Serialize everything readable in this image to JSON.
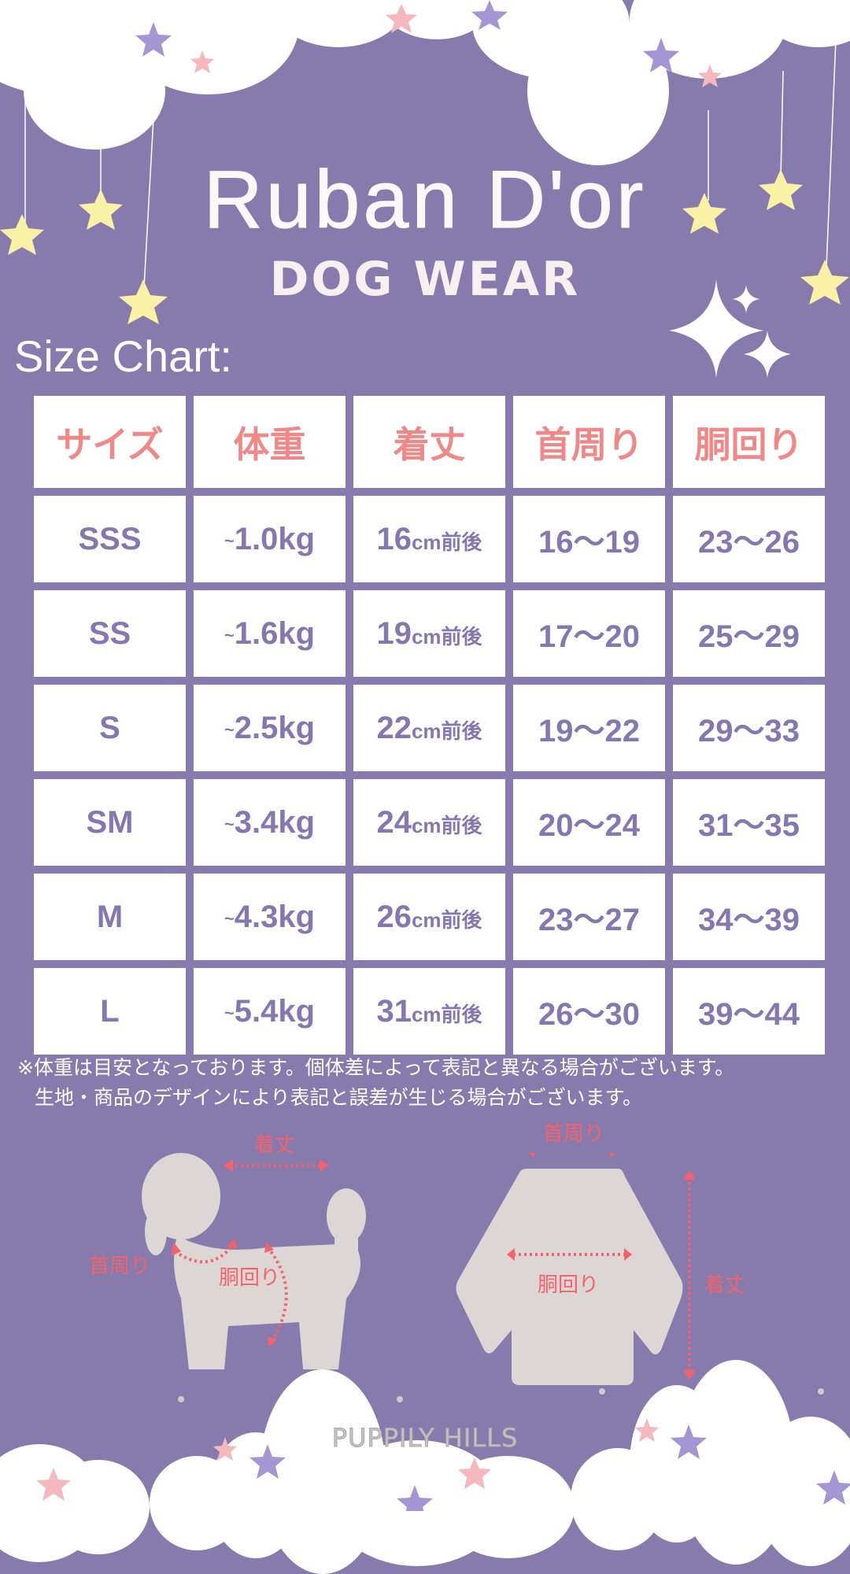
{
  "brand": {
    "title": "Ruban D'or",
    "subtitle": "DOG WEAR"
  },
  "size_chart_label": "Size Chart:",
  "colors": {
    "background": "#877bae",
    "header_text": "#f08888",
    "cell_text": "#8378b0",
    "measure_label": "#f7616a",
    "silhouette": "#dcd6d4"
  },
  "table": {
    "headers": [
      "サイズ",
      "体重",
      "着丈",
      "首周り",
      "胴回り"
    ],
    "rows": [
      {
        "size": "SSS",
        "weight_prefix": "~",
        "weight": "1.0kg",
        "length": "16",
        "length_unit": "cm前後",
        "neck": "16～19",
        "body": "23～26"
      },
      {
        "size": "SS",
        "weight_prefix": "~",
        "weight": "1.6kg",
        "length": "19",
        "length_unit": "cm前後",
        "neck": "17～20",
        "body": "25～29"
      },
      {
        "size": "S",
        "weight_prefix": "~",
        "weight": "2.5kg",
        "length": "22",
        "length_unit": "cm前後",
        "neck": "19～22",
        "body": "29～33"
      },
      {
        "size": "SM",
        "weight_prefix": "~",
        "weight": "3.4kg",
        "length": "24",
        "length_unit": "cm前後",
        "neck": "20～24",
        "body": "31～35"
      },
      {
        "size": "M",
        "weight_prefix": "~",
        "weight": "4.3kg",
        "length": "26",
        "length_unit": "cm前後",
        "neck": "23～27",
        "body": "34～39"
      },
      {
        "size": "L",
        "weight_prefix": "~",
        "weight": "5.4kg",
        "length": "31",
        "length_unit": "cm前後",
        "neck": "26～30",
        "body": "39～44"
      }
    ]
  },
  "notes": [
    "※体重は目安となっております。個体差によって表記と異なる場合がございます。",
    "生地・商品のデザインにより表記と誤差が生じる場合がございます。"
  ],
  "diagram": {
    "dog": {
      "length": "着丈",
      "neck": "首周り",
      "body": "胴回り"
    },
    "shirt": {
      "neck": "首周り",
      "body": "胴回り",
      "length": "着丈"
    }
  },
  "footer_brand": "PUPPILY HILLS"
}
